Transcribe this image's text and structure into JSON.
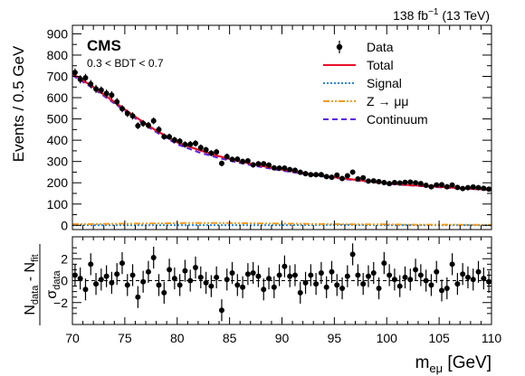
{
  "chart_data": [
    {
      "type": "scatter",
      "panel": "main",
      "lumi_label": {
        "value": "138 fb",
        "sup": "−1",
        "energy": " (13 TeV)"
      },
      "experiment": "CMS",
      "selection": "0.3 < BDT < 0.7",
      "ylabel": "Events / 0.5 GeV",
      "xlim": [
        70,
        110
      ],
      "ylim": [
        -20,
        940
      ],
      "y_ticks": [
        0,
        100,
        200,
        300,
        400,
        500,
        600,
        700,
        800,
        900
      ],
      "legend_position": "top-right",
      "legend": [
        {
          "name": "Data",
          "style": "marker",
          "color": "#000000"
        },
        {
          "name": "Total",
          "style": "solid",
          "color": "#e8102b"
        },
        {
          "name": "Signal",
          "style": "dotted",
          "color": "#2a86e8"
        },
        {
          "name": "Z → μμ",
          "style": "dashdot",
          "color": "#f39b1e"
        },
        {
          "name": "Continuum",
          "style": "dashed",
          "color": "#5a1fe6"
        }
      ],
      "data_x": [
        70.25,
        70.75,
        71.25,
        71.75,
        72.25,
        72.75,
        73.25,
        73.75,
        74.25,
        74.75,
        75.25,
        75.75,
        76.25,
        76.75,
        77.25,
        77.75,
        78.25,
        78.75,
        79.25,
        79.75,
        80.25,
        80.75,
        81.25,
        81.75,
        82.25,
        82.75,
        83.25,
        83.75,
        84.25,
        84.75,
        85.25,
        85.75,
        86.25,
        86.75,
        87.25,
        87.75,
        88.25,
        88.75,
        89.25,
        89.75,
        90.25,
        90.75,
        91.25,
        91.75,
        92.25,
        92.75,
        93.25,
        93.75,
        94.25,
        94.75,
        95.25,
        95.75,
        96.25,
        96.75,
        97.25,
        97.75,
        98.25,
        98.75,
        99.25,
        99.75,
        100.25,
        100.75,
        101.25,
        101.75,
        102.25,
        102.75,
        103.25,
        103.75,
        104.25,
        104.75,
        105.25,
        105.75,
        106.25,
        106.75,
        107.25,
        107.75,
        108.25,
        108.75,
        109.25,
        109.75
      ],
      "data_y": [
        718,
        686,
        693,
        664,
        641,
        635,
        620,
        612,
        580,
        548,
        526,
        514,
        468,
        479,
        470,
        491,
        450,
        417,
        416,
        401,
        395,
        380,
        381,
        385,
        365,
        355,
        339,
        345,
        291,
        323,
        310,
        311,
        300,
        303,
        284,
        289,
        289,
        283,
        270,
        269,
        269,
        262,
        259,
        249,
        243,
        238,
        238,
        238,
        229,
        226,
        236,
        220,
        233,
        250,
        218,
        223,
        208,
        209,
        205,
        201,
        196,
        201,
        199,
        202,
        203,
        200,
        196,
        188,
        181,
        190,
        191,
        181,
        189,
        178,
        173,
        177,
        180,
        177,
        174,
        170
      ],
      "data_err": [
        19,
        19,
        19,
        19,
        19,
        18,
        18,
        18,
        18,
        17,
        17,
        17,
        16,
        16,
        16,
        16,
        16,
        15,
        15,
        15,
        15,
        15,
        15,
        15,
        15,
        14,
        14,
        14,
        13,
        14,
        13,
        13,
        13,
        13,
        13,
        13,
        13,
        13,
        12,
        12,
        12,
        12,
        12,
        12,
        12,
        12,
        12,
        12,
        12,
        12,
        12,
        11,
        12,
        12,
        11,
        11,
        11,
        11,
        11,
        11,
        11,
        11,
        11,
        11,
        11,
        11,
        11,
        11,
        11,
        11,
        11,
        11,
        11,
        10,
        10,
        10,
        10,
        10,
        10,
        10
      ],
      "total_fit": {
        "x": [
          70,
          72,
          74,
          76,
          78,
          80,
          82,
          84,
          86,
          88,
          90,
          92,
          94,
          96,
          98,
          100,
          102,
          104,
          106,
          108,
          110
        ],
        "y": [
          712,
          650,
          580,
          510,
          445,
          390,
          355,
          325,
          300,
          280,
          262,
          246,
          232,
          220,
          208,
          198,
          190,
          184,
          178,
          172,
          167
        ]
      },
      "continuum_fit": {
        "x": [
          70,
          72,
          74,
          76,
          78,
          80,
          82,
          84,
          86,
          88,
          90,
          92,
          94,
          96,
          98,
          100,
          102,
          104,
          106,
          108,
          110
        ],
        "y": [
          705,
          643,
          573,
          503,
          438,
          381,
          344,
          316,
          293,
          274,
          257,
          242,
          229,
          217,
          206,
          196,
          188,
          182,
          176,
          171,
          166
        ]
      },
      "z_mumu_fit": {
        "x": [
          70,
          72,
          74,
          76,
          78,
          80,
          82,
          84,
          86,
          88,
          90,
          92,
          94,
          96,
          98,
          100,
          102,
          104,
          106,
          108,
          110
        ],
        "y": [
          5,
          6,
          7,
          8,
          9,
          10,
          11,
          11,
          10,
          9,
          8,
          7,
          6,
          5,
          4,
          4,
          3,
          3,
          3,
          2,
          2
        ]
      },
      "signal_fit": {
        "x": [
          70,
          90,
          95,
          100,
          110
        ],
        "y": [
          1,
          1,
          2,
          1,
          1
        ]
      }
    },
    {
      "type": "scatter",
      "panel": "pull",
      "ylabel_num": [
        "N",
        "data",
        " - N",
        "fit"
      ],
      "ylabel_den": [
        "σ",
        "data"
      ],
      "xlabel_main": "m",
      "xlabel_sub": "eμ",
      "xlabel_unit": " [GeV]",
      "xlim": [
        70,
        110
      ],
      "ylim": [
        -4,
        4
      ],
      "y_ticks": [
        -2,
        0,
        2
      ],
      "x_ticks": [
        70,
        75,
        80,
        85,
        90,
        95,
        100,
        105,
        110
      ],
      "pull": [
        0.5,
        0.2,
        -0.8,
        1.5,
        -0.3,
        0.1,
        0.4,
        -0.2,
        0.6,
        1.6,
        -0.4,
        0.5,
        -1.5,
        -0.1,
        0.8,
        2.1,
        -0.4,
        -1.1,
        1.0,
        0.2,
        -0.4,
        0.9,
        0.0,
        1.2,
        0.3,
        -0.2,
        -0.5,
        0.3,
        -2.7,
        0.1,
        0.7,
        -0.4,
        -0.6,
        0.6,
        0.7,
        0.4,
        -0.8,
        0.2,
        -0.6,
        0.5,
        1.3,
        0.4,
        0.5,
        -1.1,
        -0.2,
        0.5,
        -0.3,
        0.7,
        -0.6,
        0.8,
        -0.4,
        -0.7,
        0.4,
        2.4,
        0.5,
        -0.3,
        0.4,
        0.7,
        -0.7,
        1.6,
        0.5,
        0.1,
        -0.5,
        0.3,
        0.1,
        1.0,
        0.5,
        0.0,
        -0.4,
        0.8,
        -0.9,
        -0.7,
        1.5,
        -0.3,
        0.6,
        0.3,
        0.1,
        0.8,
        0.2,
        -0.1
      ],
      "pull_err": 1
    }
  ]
}
